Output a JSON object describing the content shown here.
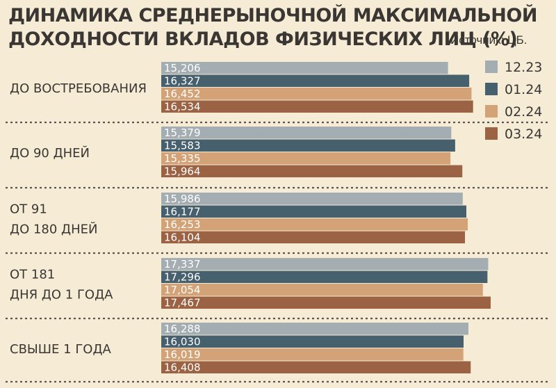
{
  "title_line1": "ДИНАМИКА СРЕДНЕРЫНОЧНОЙ МАКСИМАЛЬНОЙ",
  "title_line2": "ДОХОДНОСТИ ВКЛАДОВ ФИЗИЧЕСКИХ ЛИЦ (%)",
  "source": "Источник: ЦБ.",
  "colors": {
    "background": "#f6ecd6",
    "text": "#3a3633",
    "divider": "#5a5550"
  },
  "chart_data": {
    "type": "bar",
    "orientation": "horizontal",
    "title": "ДИНАМИКА СРЕДНЕРЫНОЧНОЙ МАКСИМАЛЬНОЙ ДОХОДНОСТИ ВКЛАДОВ ФИЗИЧЕСКИХ ЛИЦ (%)",
    "categories": [
      [
        "ДО ВОСТРЕБОВАНИЯ"
      ],
      [
        "ДО 90 ДНЕЙ"
      ],
      [
        "ОТ 91",
        "ДО 180 ДНЕЙ"
      ],
      [
        "ОТ 181",
        "ДНЯ ДО 1 ГОДА"
      ],
      [
        "СВЫШЕ 1 ГОДА"
      ]
    ],
    "series": [
      {
        "name": "12.23",
        "color": "#a3adb2",
        "values": [
          15.206,
          15.379,
          15.986,
          17.337,
          16.288
        ],
        "labels": [
          "15,206",
          "15,379",
          "15,986",
          "17,337",
          "16,288"
        ]
      },
      {
        "name": "01.24",
        "color": "#47606e",
        "values": [
          16.327,
          15.583,
          16.177,
          17.296,
          16.03
        ],
        "labels": [
          "16,327",
          "15,583",
          "16,177",
          "17,296",
          "16,030"
        ]
      },
      {
        "name": "02.24",
        "color": "#d3a276",
        "values": [
          16.452,
          15.335,
          16.253,
          17.054,
          16.019
        ],
        "labels": [
          "16,452",
          "15,335",
          "16,253",
          "17,054",
          "16,019"
        ]
      },
      {
        "name": "03.24",
        "color": "#9b6244",
        "values": [
          16.534,
          15.964,
          16.104,
          17.467,
          16.408
        ],
        "labels": [
          "16,534",
          "15,964",
          "16,104",
          "17,467",
          "16,408"
        ]
      }
    ],
    "xlim": [
      0,
      17.467
    ],
    "grid": false,
    "legend": "top-right"
  }
}
